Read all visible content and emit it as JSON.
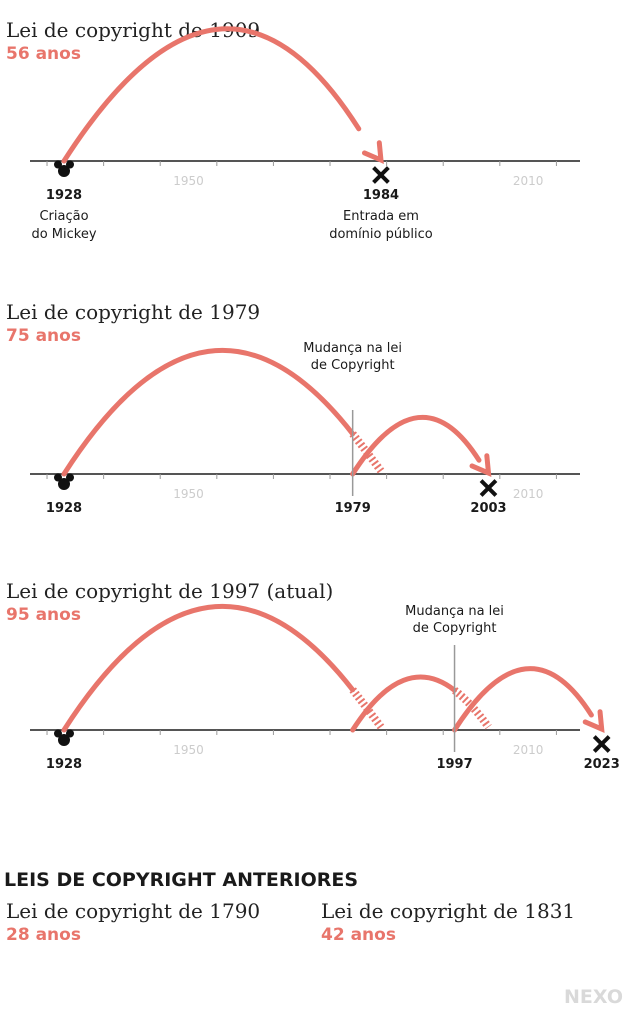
{
  "colors": {
    "accent": "#e8756b",
    "axis": "#555555",
    "tick_label": "#cccccc",
    "text": "#1a1a1a",
    "brand": "#d9d9d9"
  },
  "icons": {
    "start": "mickey-head-icon",
    "end": "x-mark-icon"
  },
  "timelines": [
    {
      "title": "Lei de copyright de 1909",
      "duration": "56 anos",
      "start_year": 1928,
      "end_year": 1984,
      "start_label": "1928",
      "end_label": "1984",
      "start_caption": [
        "Criação",
        "do Mickey"
      ],
      "end_caption": [
        "Entrada em",
        "domínio público"
      ],
      "change_year": null,
      "change_label": "",
      "change_note": [],
      "ref_ticks": [
        {
          "year": 1950,
          "label": "1950"
        },
        {
          "year": 2010,
          "label": "2010"
        }
      ],
      "arcs": [
        {
          "from": 1928,
          "to": 1984,
          "kind": "arrow"
        }
      ]
    },
    {
      "title": "Lei de copyright de 1979",
      "duration": "75 anos",
      "start_year": 1928,
      "end_year": 2003,
      "start_label": "1928",
      "end_label": "2003",
      "start_caption": [],
      "end_caption": [],
      "change_year": 1979,
      "change_label": "1979",
      "change_note": [
        "Mudança na lei",
        "de Copyright"
      ],
      "ref_ticks": [
        {
          "year": 1950,
          "label": "1950"
        },
        {
          "year": 2010,
          "label": "2010"
        }
      ],
      "arcs": [
        {
          "from": 1928,
          "to": 1984,
          "cut": 1979,
          "kind": "superseded"
        },
        {
          "from": 1979,
          "to": 2003,
          "kind": "arrow"
        }
      ]
    },
    {
      "title": "Lei de copyright de 1997 (atual)",
      "duration": "95 anos",
      "start_year": 1928,
      "end_year": 2023,
      "start_label": "1928",
      "end_label": "2023",
      "start_caption": [],
      "end_caption": [],
      "change_year": 1997,
      "change_label": "1997",
      "change_note": [
        "Mudança na lei",
        "de Copyright"
      ],
      "ref_ticks": [
        {
          "year": 1950,
          "label": "1950"
        },
        {
          "year": 2010,
          "label": "2010"
        }
      ],
      "arcs": [
        {
          "from": 1928,
          "to": 1984,
          "cut": 1979,
          "kind": "superseded"
        },
        {
          "from": 1979,
          "to": 2003,
          "cut": 1997,
          "kind": "superseded"
        },
        {
          "from": 1997,
          "to": 2023,
          "kind": "arrow"
        }
      ]
    }
  ],
  "previous": {
    "heading": "LEIS DE COPYRIGHT ANTERIORES",
    "items": [
      {
        "title": "Lei de copyright de 1790",
        "duration": "28 anos"
      },
      {
        "title": "Lei de copyright de 1831",
        "duration": "42 anos"
      }
    ]
  },
  "brand": "NEXO"
}
